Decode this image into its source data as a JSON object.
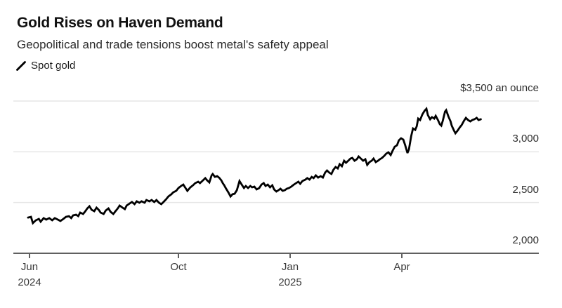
{
  "header": {
    "title": "Gold Rises on Haven Demand",
    "subtitle": "Geopolitical and trade tensions boost metal's safety appeal"
  },
  "legend": {
    "series_label": "Spot gold",
    "marker": "diagonal-line",
    "color": "#000000"
  },
  "colors": {
    "line": "#000000",
    "grid": "#e6e6e6",
    "axis": "#2b2b2b",
    "title": "#111111",
    "subtitle": "#2b2b2b",
    "tick_label": "#3a3a3a",
    "background": "#ffffff"
  },
  "chart_data": {
    "type": "line",
    "title": "Gold Rises on Haven Demand",
    "subtitle": "Geopolitical and trade tensions boost metal's safety appeal",
    "xlabel": "",
    "ylabel": "$ an ounce",
    "x_unit": "months since Jun 2024",
    "grid": "horizontal",
    "legend_position": "top-left",
    "x_axis": {
      "min": -0.44,
      "max": 13.7,
      "ticks": [
        {
          "t": 0,
          "label": "Jun",
          "year": "2024"
        },
        {
          "t": 4,
          "label": "Oct",
          "year": ""
        },
        {
          "t": 7,
          "label": "Jan",
          "year": "2025"
        },
        {
          "t": 10,
          "label": "Apr",
          "year": ""
        }
      ]
    },
    "y_axis": {
      "min": 2000,
      "max": 3500,
      "gridlines": [
        3500,
        3000,
        2500
      ],
      "baseline": 2000,
      "ticks": [
        {
          "value": 3500,
          "label": "$3,500 an ounce"
        },
        {
          "value": 3000,
          "label": "3,000"
        },
        {
          "value": 2500,
          "label": "2,500"
        },
        {
          "value": 2000,
          "label": "2,000"
        }
      ]
    },
    "series": [
      {
        "name": "Spot gold",
        "color": "#000000",
        "points": [
          [
            -0.04,
            2352
          ],
          [
            0.04,
            2359
          ],
          [
            0.09,
            2297
          ],
          [
            0.17,
            2325
          ],
          [
            0.25,
            2339
          ],
          [
            0.3,
            2311
          ],
          [
            0.38,
            2346
          ],
          [
            0.45,
            2332
          ],
          [
            0.53,
            2346
          ],
          [
            0.61,
            2325
          ],
          [
            0.68,
            2346
          ],
          [
            0.76,
            2332
          ],
          [
            0.83,
            2318
          ],
          [
            0.91,
            2339
          ],
          [
            0.98,
            2359
          ],
          [
            1.06,
            2366
          ],
          [
            1.12,
            2346
          ],
          [
            1.17,
            2373
          ],
          [
            1.25,
            2380
          ],
          [
            1.31,
            2366
          ],
          [
            1.36,
            2401
          ],
          [
            1.44,
            2387
          ],
          [
            1.5,
            2415
          ],
          [
            1.55,
            2442
          ],
          [
            1.61,
            2463
          ],
          [
            1.67,
            2428
          ],
          [
            1.74,
            2415
          ],
          [
            1.8,
            2449
          ],
          [
            1.86,
            2428
          ],
          [
            1.91,
            2401
          ],
          [
            1.99,
            2387
          ],
          [
            2.05,
            2422
          ],
          [
            2.12,
            2442
          ],
          [
            2.18,
            2408
          ],
          [
            2.25,
            2387
          ],
          [
            2.31,
            2415
          ],
          [
            2.37,
            2442
          ],
          [
            2.42,
            2470
          ],
          [
            2.5,
            2449
          ],
          [
            2.56,
            2435
          ],
          [
            2.61,
            2470
          ],
          [
            2.69,
            2491
          ],
          [
            2.75,
            2505
          ],
          [
            2.82,
            2484
          ],
          [
            2.88,
            2512
          ],
          [
            2.95,
            2498
          ],
          [
            3.01,
            2512
          ],
          [
            3.09,
            2498
          ],
          [
            3.14,
            2525
          ],
          [
            3.22,
            2512
          ],
          [
            3.28,
            2525
          ],
          [
            3.35,
            2505
          ],
          [
            3.41,
            2525
          ],
          [
            3.48,
            2498
          ],
          [
            3.54,
            2484
          ],
          [
            3.6,
            2505
          ],
          [
            3.67,
            2532
          ],
          [
            3.73,
            2560
          ],
          [
            3.81,
            2581
          ],
          [
            3.86,
            2601
          ],
          [
            3.94,
            2615
          ],
          [
            4.0,
            2643
          ],
          [
            4.07,
            2663
          ],
          [
            4.13,
            2677
          ],
          [
            4.19,
            2643
          ],
          [
            4.24,
            2615
          ],
          [
            4.32,
            2650
          ],
          [
            4.39,
            2670
          ],
          [
            4.45,
            2691
          ],
          [
            4.53,
            2705
          ],
          [
            4.58,
            2691
          ],
          [
            4.66,
            2719
          ],
          [
            4.72,
            2740
          ],
          [
            4.77,
            2719
          ],
          [
            4.83,
            2698
          ],
          [
            4.89,
            2767
          ],
          [
            4.92,
            2781
          ],
          [
            4.98,
            2753
          ],
          [
            5.04,
            2760
          ],
          [
            5.09,
            2746
          ],
          [
            5.15,
            2719
          ],
          [
            5.19,
            2691
          ],
          [
            5.23,
            2670
          ],
          [
            5.27,
            2643
          ],
          [
            5.34,
            2601
          ],
          [
            5.4,
            2560
          ],
          [
            5.45,
            2581
          ],
          [
            5.51,
            2587
          ],
          [
            5.57,
            2622
          ],
          [
            5.64,
            2712
          ],
          [
            5.7,
            2677
          ],
          [
            5.76,
            2643
          ],
          [
            5.81,
            2663
          ],
          [
            5.87,
            2643
          ],
          [
            5.93,
            2663
          ],
          [
            5.98,
            2650
          ],
          [
            6.04,
            2657
          ],
          [
            6.1,
            2629
          ],
          [
            6.17,
            2643
          ],
          [
            6.23,
            2677
          ],
          [
            6.29,
            2691
          ],
          [
            6.34,
            2663
          ],
          [
            6.4,
            2677
          ],
          [
            6.46,
            2650
          ],
          [
            6.52,
            2670
          ],
          [
            6.57,
            2629
          ],
          [
            6.63,
            2608
          ],
          [
            6.69,
            2622
          ],
          [
            6.74,
            2636
          ],
          [
            6.8,
            2615
          ],
          [
            6.86,
            2622
          ],
          [
            6.91,
            2636
          ],
          [
            6.97,
            2643
          ],
          [
            7.03,
            2657
          ],
          [
            7.1,
            2677
          ],
          [
            7.16,
            2691
          ],
          [
            7.22,
            2705
          ],
          [
            7.27,
            2684
          ],
          [
            7.33,
            2712
          ],
          [
            7.41,
            2726
          ],
          [
            7.46,
            2740
          ],
          [
            7.52,
            2726
          ],
          [
            7.58,
            2753
          ],
          [
            7.63,
            2740
          ],
          [
            7.69,
            2767
          ],
          [
            7.75,
            2746
          ],
          [
            7.82,
            2760
          ],
          [
            7.88,
            2746
          ],
          [
            7.94,
            2795
          ],
          [
            7.99,
            2816
          ],
          [
            8.05,
            2795
          ],
          [
            8.11,
            2781
          ],
          [
            8.16,
            2822
          ],
          [
            8.22,
            2850
          ],
          [
            8.28,
            2836
          ],
          [
            8.33,
            2878
          ],
          [
            8.39,
            2857
          ],
          [
            8.45,
            2912
          ],
          [
            8.5,
            2892
          ],
          [
            8.56,
            2912
          ],
          [
            8.62,
            2933
          ],
          [
            8.67,
            2940
          ],
          [
            8.73,
            2912
          ],
          [
            8.79,
            2926
          ],
          [
            8.84,
            2954
          ],
          [
            8.9,
            2933
          ],
          [
            8.96,
            2912
          ],
          [
            9.02,
            2926
          ],
          [
            9.07,
            2871
          ],
          [
            9.13,
            2898
          ],
          [
            9.19,
            2912
          ],
          [
            9.24,
            2933
          ],
          [
            9.3,
            2898
          ],
          [
            9.36,
            2912
          ],
          [
            9.41,
            2926
          ],
          [
            9.47,
            2940
          ],
          [
            9.53,
            2961
          ],
          [
            9.58,
            2981
          ],
          [
            9.64,
            2995
          ],
          [
            9.7,
            2968
          ],
          [
            9.75,
            3009
          ],
          [
            9.81,
            3050
          ],
          [
            9.87,
            3064
          ],
          [
            9.92,
            3113
          ],
          [
            9.98,
            3133
          ],
          [
            10.04,
            3120
          ],
          [
            10.09,
            3064
          ],
          [
            10.15,
            2988
          ],
          [
            10.19,
            3023
          ],
          [
            10.25,
            3154
          ],
          [
            10.3,
            3230
          ],
          [
            10.36,
            3216
          ],
          [
            10.4,
            3251
          ],
          [
            10.44,
            3327
          ],
          [
            10.49,
            3313
          ],
          [
            10.55,
            3368
          ],
          [
            10.61,
            3403
          ],
          [
            10.66,
            3424
          ],
          [
            10.7,
            3361
          ],
          [
            10.76,
            3320
          ],
          [
            10.81,
            3341
          ],
          [
            10.87,
            3327
          ],
          [
            10.91,
            3354
          ],
          [
            10.97,
            3313
          ],
          [
            11.02,
            3272
          ],
          [
            11.06,
            3258
          ],
          [
            11.1,
            3306
          ],
          [
            11.16,
            3396
          ],
          [
            11.19,
            3410
          ],
          [
            11.25,
            3348
          ],
          [
            11.31,
            3299
          ],
          [
            11.34,
            3258
          ],
          [
            11.4,
            3210
          ],
          [
            11.44,
            3182
          ],
          [
            11.5,
            3210
          ],
          [
            11.55,
            3237
          ],
          [
            11.61,
            3265
          ],
          [
            11.67,
            3306
          ],
          [
            11.72,
            3334
          ],
          [
            11.78,
            3313
          ],
          [
            11.84,
            3299
          ],
          [
            11.89,
            3313
          ],
          [
            11.95,
            3320
          ],
          [
            12.01,
            3334
          ],
          [
            12.06,
            3313
          ],
          [
            12.12,
            3320
          ]
        ]
      }
    ]
  }
}
